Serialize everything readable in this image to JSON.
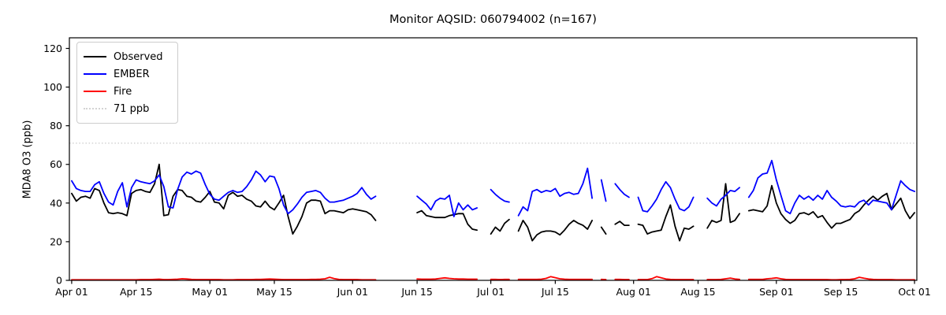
{
  "header": {
    "title": "Monitor AQSID: 060794002 (n=167)"
  },
  "chart_data": {
    "type": "line",
    "title": "Monitor AQSID: 060794002 (n=167)",
    "xlabel": "",
    "ylabel": "MDA8 O3 (ppb)",
    "x_unit": "days since Apr 01",
    "n_points_label": "n=167",
    "ylim": [
      0,
      125.5
    ],
    "xlim_days": [
      -0.5,
      183.5
    ],
    "grid": false,
    "legend_position": "upper-left",
    "y_ticks": [
      0,
      20,
      40,
      60,
      80,
      100,
      120
    ],
    "x_ticks": [
      {
        "day": 0,
        "label": "Apr 01"
      },
      {
        "day": 14,
        "label": "Apr 15"
      },
      {
        "day": 30,
        "label": "May 01"
      },
      {
        "day": 44,
        "label": "May 15"
      },
      {
        "day": 61,
        "label": "Jun 01"
      },
      {
        "day": 75,
        "label": "Jun 15"
      },
      {
        "day": 91,
        "label": "Jul 01"
      },
      {
        "day": 105,
        "label": "Jul 15"
      },
      {
        "day": 122,
        "label": "Aug 01"
      },
      {
        "day": 136,
        "label": "Aug 15"
      },
      {
        "day": 153,
        "label": "Sep 01"
      },
      {
        "day": 167,
        "label": "Sep 15"
      },
      {
        "day": 183,
        "label": "Oct 01"
      }
    ],
    "threshold": {
      "value": 71,
      "label": "71 ppb",
      "color": "#d3d3d3",
      "style": "dotted"
    },
    "legend": [
      {
        "label": "Observed",
        "color": "#000000",
        "style": "solid"
      },
      {
        "label": "EMBER",
        "color": "#0000ff",
        "style": "solid"
      },
      {
        "label": "Fire",
        "color": "#ff0000",
        "style": "solid"
      },
      {
        "label": "71 ppb",
        "color": "#d3d3d3",
        "style": "dotted"
      }
    ],
    "missing_days": [
      "Jun 07-14",
      "Jun 29-30",
      "Jul 06",
      "Jul 24",
      "Jul 27",
      "Aug 01",
      "Aug 15-16",
      "Aug 25"
    ],
    "series": [
      {
        "name": "Observed",
        "color": "#000000",
        "values": [
          45,
          41,
          43,
          43.5,
          42.5,
          47.5,
          46.5,
          40,
          35,
          34.5,
          35,
          34.5,
          33.5,
          45,
          46.5,
          47,
          46,
          45.5,
          50,
          60,
          33.5,
          34,
          43.5,
          47,
          46.5,
          43.5,
          43,
          41,
          40.5,
          43,
          46,
          40.5,
          40,
          37,
          44,
          45.5,
          43.5,
          44,
          42,
          41,
          38.5,
          38,
          41,
          38,
          36.5,
          40,
          44,
          33,
          24,
          28,
          33,
          40,
          41.5,
          41.5,
          41,
          34.5,
          36,
          36,
          35.5,
          35,
          36.5,
          37,
          36.5,
          36,
          35.5,
          34,
          31,
          null,
          null,
          null,
          null,
          null,
          null,
          null,
          null,
          35,
          36,
          33.5,
          33,
          32.5,
          32.5,
          32.5,
          33.5,
          34,
          34.5,
          34.5,
          29,
          26.5,
          26,
          null,
          null,
          24,
          27.5,
          25.5,
          29.5,
          31.5,
          null,
          25.5,
          31,
          27.5,
          20.5,
          23.5,
          25,
          25.5,
          25.5,
          25,
          23.5,
          26,
          29,
          31,
          29.5,
          28.5,
          26.5,
          31,
          null,
          27.5,
          24,
          null,
          29,
          30.5,
          28.5,
          28.5,
          null,
          29,
          28.5,
          24,
          25,
          25.5,
          26,
          33,
          39,
          28,
          20.5,
          27,
          26.5,
          28,
          null,
          null,
          27,
          31,
          30,
          31,
          50,
          30,
          31,
          34.5,
          null,
          36,
          36.5,
          36,
          35.5,
          38.5,
          49,
          40,
          34.5,
          31.5,
          29.5,
          31,
          34.5,
          35,
          34,
          35.5,
          32.5,
          33.5,
          30,
          27,
          29.5,
          29.5,
          30.5,
          31.5,
          34.5,
          36,
          39,
          41.5,
          43.5,
          41.5,
          43.5,
          45,
          36.5,
          39.5,
          42.5,
          36,
          32,
          35
        ]
      },
      {
        "name": "EMBER",
        "color": "#0000ff",
        "values": [
          51.5,
          47.5,
          46.5,
          46,
          46,
          49.5,
          51,
          45,
          40.5,
          39,
          46,
          50.5,
          38,
          48,
          52,
          51,
          50.5,
          50,
          51.5,
          54.5,
          48.5,
          38,
          37.5,
          47,
          53.5,
          56,
          55,
          56.5,
          55.5,
          49.5,
          44.5,
          42,
          41.5,
          43.5,
          45.5,
          46.5,
          45.5,
          46,
          48.5,
          52,
          56.5,
          54.5,
          51,
          54,
          53.5,
          47.5,
          39,
          34.5,
          36.5,
          39.5,
          43,
          45.5,
          46,
          46.5,
          45.5,
          42.5,
          40.5,
          40.5,
          41,
          41.5,
          42.5,
          43.5,
          45,
          48,
          44.5,
          42,
          43.5,
          null,
          null,
          null,
          null,
          null,
          null,
          null,
          null,
          43.5,
          41.5,
          39.5,
          36.5,
          41,
          42.5,
          42,
          44,
          33,
          40,
          36.5,
          39,
          36.5,
          37.5,
          null,
          null,
          47,
          44.5,
          42.5,
          41,
          40.5,
          null,
          33.5,
          38,
          36,
          46,
          47,
          45.5,
          46.5,
          46,
          47.5,
          43.5,
          45,
          45.5,
          44.5,
          45,
          50,
          58,
          42.5,
          null,
          52,
          41,
          null,
          50,
          47,
          44.5,
          43,
          null,
          43,
          36,
          35.5,
          38.5,
          42,
          47,
          51,
          48,
          42,
          37,
          36,
          38,
          43,
          null,
          null,
          42.5,
          40,
          38.5,
          42,
          44,
          46.5,
          46,
          48,
          null,
          43,
          46.5,
          53,
          55,
          55.5,
          62,
          52,
          44,
          36,
          34.5,
          40,
          44,
          42,
          43.5,
          41.5,
          44,
          42,
          46.5,
          43,
          41,
          38.5,
          38,
          38.5,
          38,
          40.5,
          41.5,
          39,
          41.5,
          41,
          40.5,
          40,
          36.5,
          44,
          51.5,
          49,
          47,
          46
        ]
      },
      {
        "name": "Fire",
        "color": "#ff0000",
        "values": [
          0.3,
          0.3,
          0.3,
          0.3,
          0.3,
          0.3,
          0.3,
          0.3,
          0.3,
          0.3,
          0.3,
          0.3,
          0.3,
          0.3,
          0.3,
          0.4,
          0.4,
          0.4,
          0.5,
          0.6,
          0.4,
          0.4,
          0.5,
          0.6,
          0.8,
          0.7,
          0.5,
          0.4,
          0.4,
          0.4,
          0.4,
          0.4,
          0.4,
          0.3,
          0.3,
          0.3,
          0.4,
          0.4,
          0.4,
          0.4,
          0.5,
          0.5,
          0.6,
          0.7,
          0.6,
          0.5,
          0.4,
          0.4,
          0.4,
          0.4,
          0.4,
          0.4,
          0.5,
          0.5,
          0.6,
          0.8,
          1.6,
          0.9,
          0.5,
          0.4,
          0.4,
          0.4,
          0.4,
          0.3,
          0.3,
          0.3,
          0.3,
          null,
          null,
          null,
          null,
          null,
          null,
          null,
          null,
          0.7,
          0.6,
          0.6,
          0.6,
          0.7,
          1.0,
          1.3,
          1.0,
          0.8,
          0.7,
          0.7,
          0.6,
          0.6,
          0.6,
          null,
          null,
          0.5,
          0.5,
          0.4,
          0.5,
          0.5,
          null,
          0.5,
          0.5,
          0.5,
          0.5,
          0.5,
          0.6,
          1.0,
          1.9,
          1.4,
          0.8,
          0.6,
          0.5,
          0.5,
          0.5,
          0.5,
          0.5,
          0.5,
          null,
          0.5,
          0.4,
          null,
          0.5,
          0.5,
          0.4,
          0.4,
          null,
          0.4,
          0.4,
          0.4,
          0.9,
          1.9,
          1.3,
          0.7,
          0.5,
          0.4,
          0.4,
          0.4,
          0.4,
          0.4,
          null,
          null,
          0.4,
          0.4,
          0.4,
          0.5,
          0.8,
          1.2,
          0.7,
          0.5,
          null,
          0.5,
          0.5,
          0.5,
          0.5,
          0.8,
          1.0,
          1.3,
          0.8,
          0.5,
          0.4,
          0.4,
          0.4,
          0.4,
          0.4,
          0.4,
          0.4,
          0.4,
          0.4,
          0.3,
          0.3,
          0.4,
          0.4,
          0.5,
          0.8,
          1.6,
          1.1,
          0.7,
          0.5,
          0.4,
          0.4,
          0.4,
          0.4,
          0.3,
          0.3,
          0.3,
          0.3,
          0.3
        ]
      }
    ]
  }
}
